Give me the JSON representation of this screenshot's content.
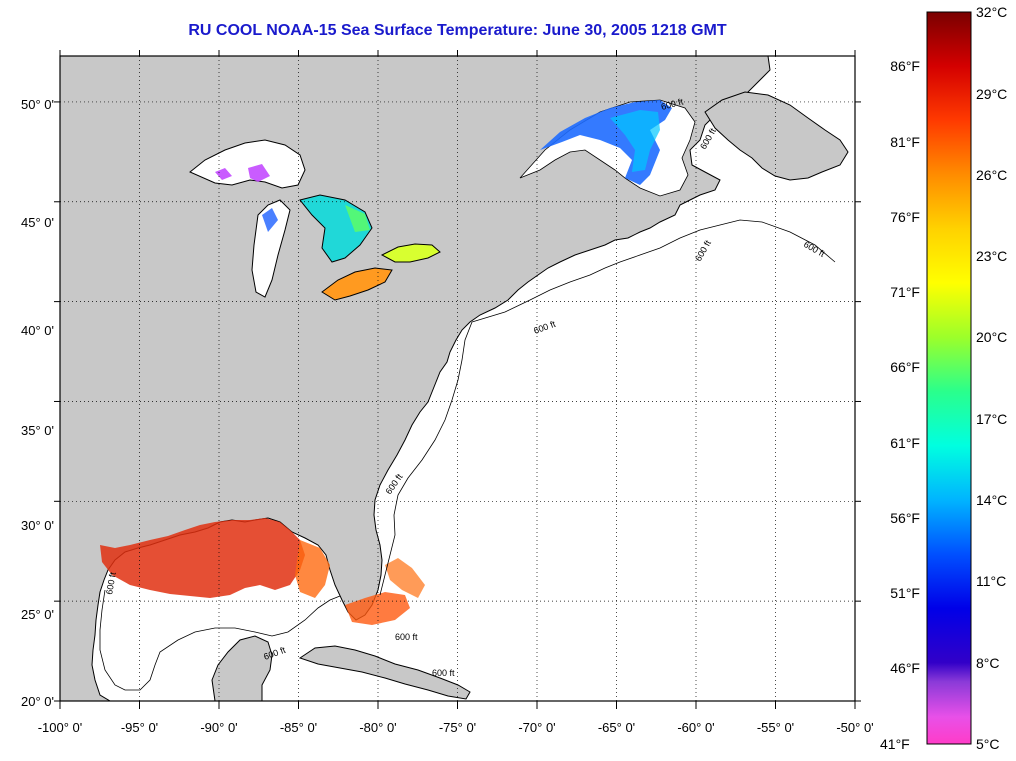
{
  "title": "RU COOL  NOAA-15  Sea Surface Temperature:  June 30, 2005 1218 GMT",
  "axes": {
    "lon_labels": [
      "-100° 0'",
      "-95° 0'",
      "-90° 0'",
      "-85° 0'",
      "-80° 0'",
      "-75° 0'",
      "-70° 0'",
      "-65° 0'",
      "-60° 0'",
      "-55° 0'",
      "-50° 0'"
    ],
    "lat_labels": [
      "20° 0'",
      "25° 0'",
      "30° 0'",
      "35° 0'",
      "40° 0'",
      "45° 0'",
      "50° 0'"
    ],
    "lon_range": [
      -100,
      -50
    ],
    "lat_range": [
      20,
      52.3
    ]
  },
  "isobath_labels": [
    "600 ft",
    "600 ft",
    "600 ft",
    "600 ft",
    "600 ft",
    "600 ft",
    "600 ft",
    "600 ft",
    "600 ft",
    "600 ft"
  ],
  "colorbar": {
    "celsius": [
      "32°C",
      "29°C",
      "26°C",
      "23°C",
      "20°C",
      "17°C",
      "14°C",
      "11°C",
      "8°C",
      "5°C"
    ],
    "fahrenheit": [
      "86°F",
      "81°F",
      "76°F",
      "71°F",
      "66°F",
      "61°F",
      "56°F",
      "51°F",
      "46°F",
      "41°F"
    ],
    "range_c": [
      5,
      32
    ],
    "stops": [
      {
        "c": 32,
        "color": "#7a0000"
      },
      {
        "c": 30,
        "color": "#d40000"
      },
      {
        "c": 28,
        "color": "#ff3a00"
      },
      {
        "c": 26,
        "color": "#ff8c00"
      },
      {
        "c": 24,
        "color": "#ffd200"
      },
      {
        "c": 22,
        "color": "#ffff00"
      },
      {
        "c": 20,
        "color": "#9cff2a"
      },
      {
        "c": 18,
        "color": "#2aff8c"
      },
      {
        "c": 16,
        "color": "#00ffe0"
      },
      {
        "c": 14,
        "color": "#00b4ff"
      },
      {
        "c": 12,
        "color": "#0050ff"
      },
      {
        "c": 10,
        "color": "#0000e8"
      },
      {
        "c": 8,
        "color": "#3200c8"
      },
      {
        "c": 7.3,
        "color": "#8a3ad8"
      },
      {
        "c": 6,
        "color": "#e850e8"
      },
      {
        "c": 5,
        "color": "#ff3cc8"
      }
    ]
  },
  "colors": {
    "land": "#c8c8c8",
    "ocean": "#ffffff",
    "coast": "#000000",
    "title": "#1a1acc",
    "grid": "#000000"
  }
}
